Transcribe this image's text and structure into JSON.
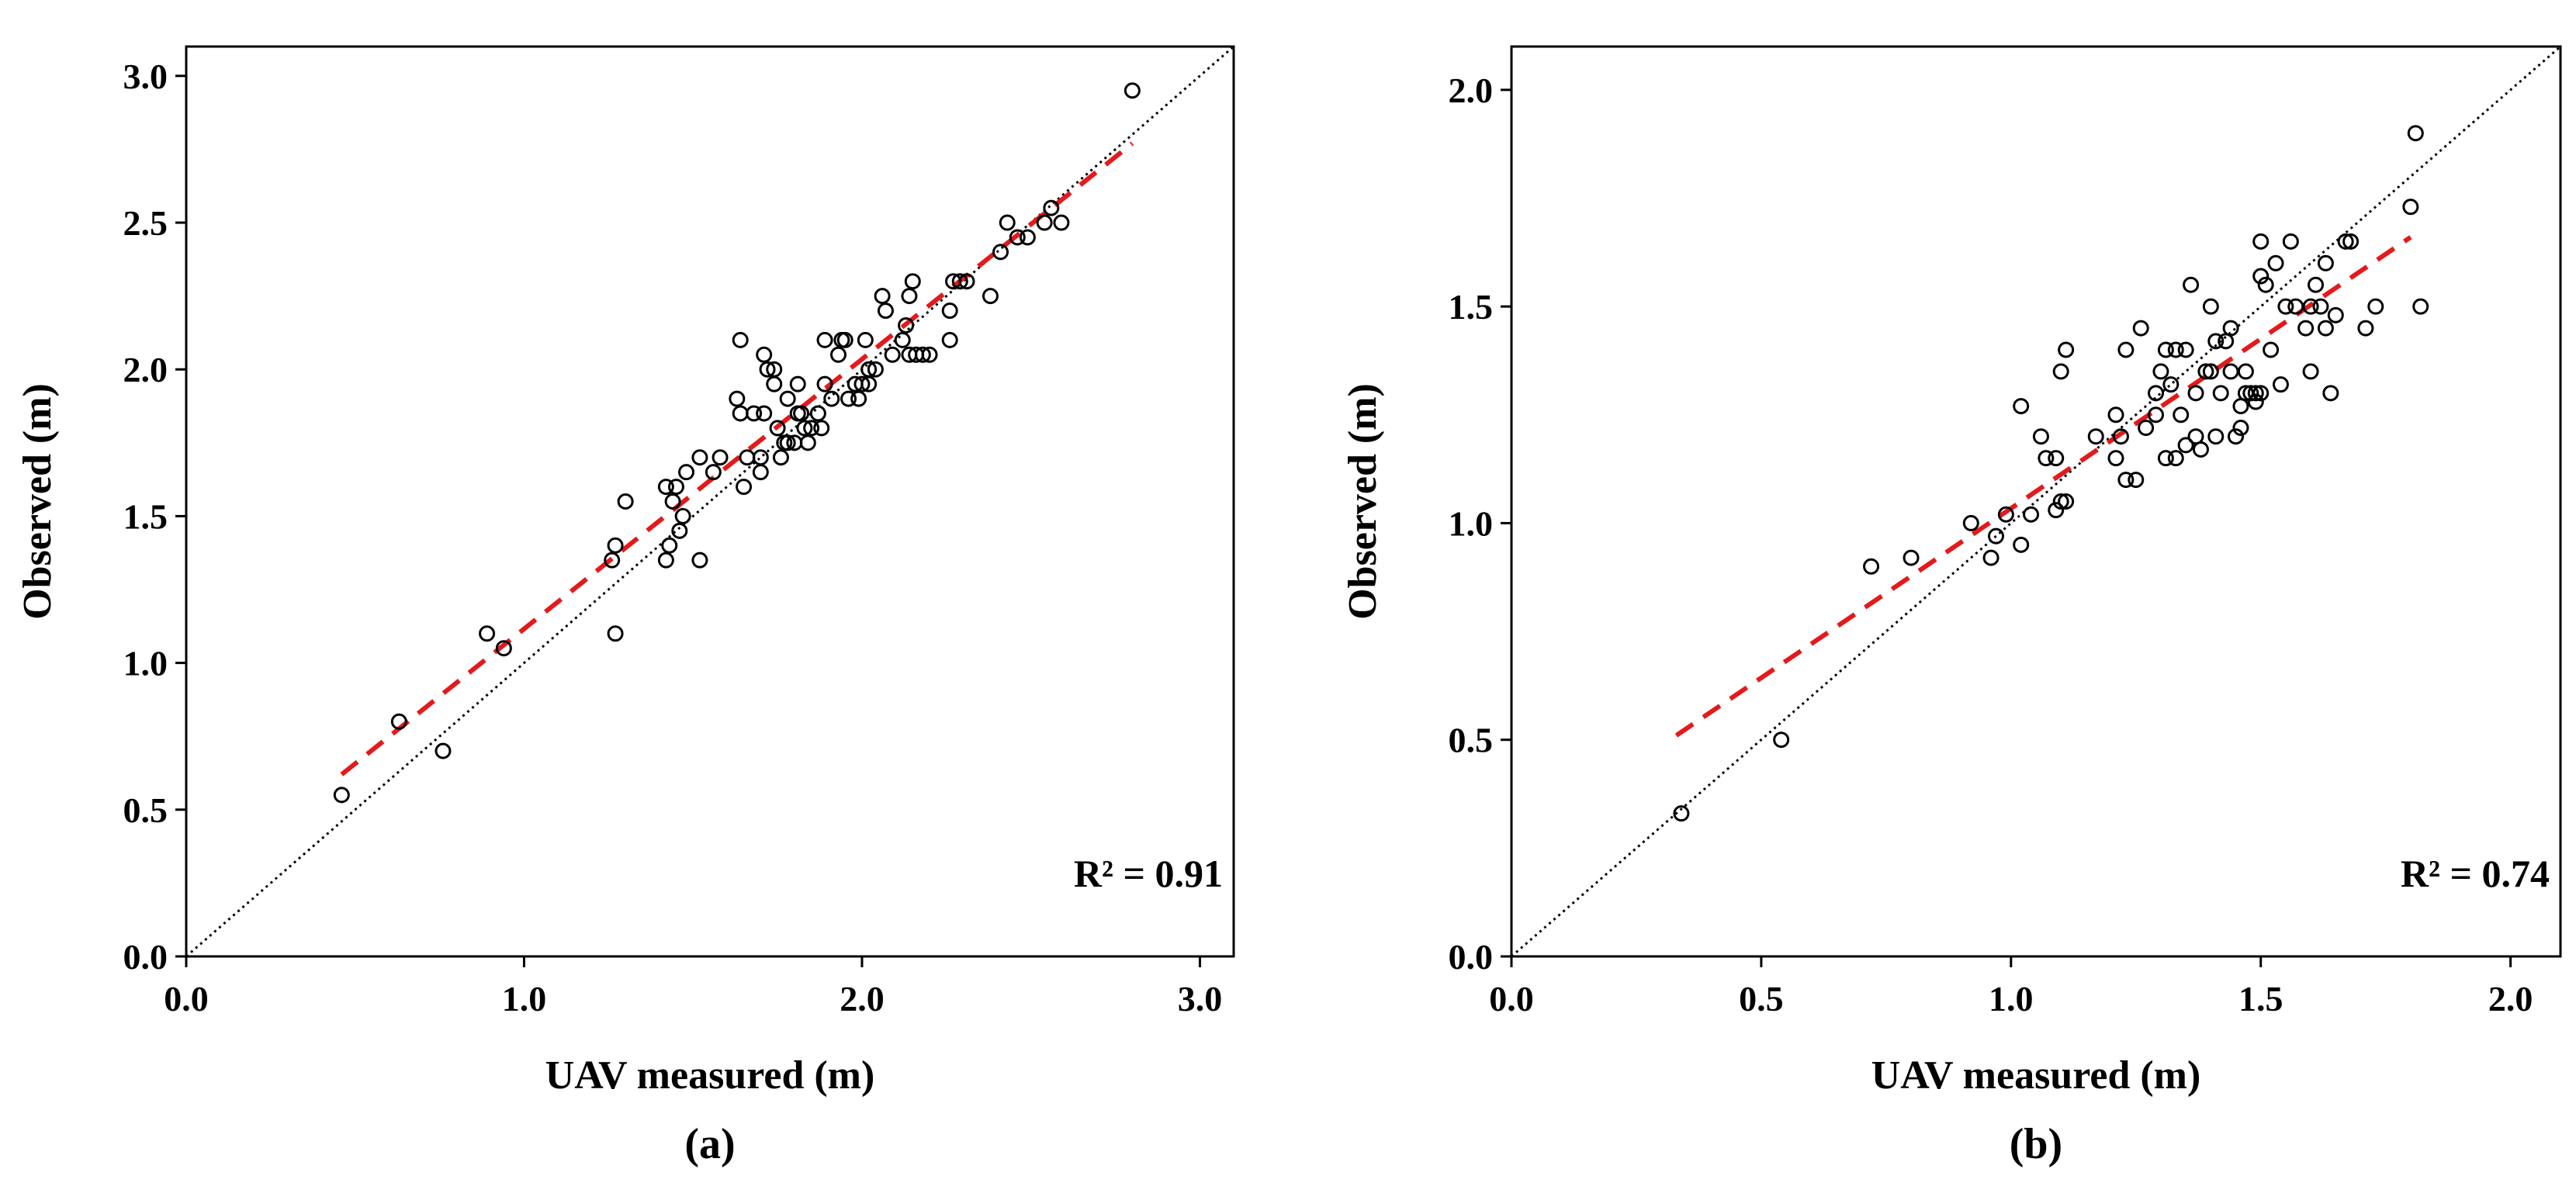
{
  "chart_data": [
    {
      "type": "scatter",
      "panel_label": "(a)",
      "xlabel": "UAV measured (m)",
      "ylabel": "Observed (m)",
      "xlim": [
        0,
        3.1
      ],
      "ylim": [
        0,
        3.1
      ],
      "xticks": [
        0,
        1,
        2,
        3
      ],
      "yticks": [
        0,
        0.5,
        1,
        1.5,
        2,
        2.5,
        3
      ],
      "xtick_labels": [
        "0.0",
        "1.0",
        "2.0",
        "3.0"
      ],
      "ytick_labels": [
        "0.0",
        "0.5",
        "1.0",
        "1.5",
        "2.0",
        "2.5",
        "3.0"
      ],
      "r2_text": "R² = 0.91",
      "identity_line": true,
      "fit_line": {
        "x1": 0.46,
        "y1": 0.62,
        "x2": 2.8,
        "y2": 2.77,
        "color": "#e31a1c"
      },
      "points": [
        [
          0.46,
          0.55
        ],
        [
          0.63,
          0.8
        ],
        [
          0.76,
          0.7
        ],
        [
          0.89,
          1.1
        ],
        [
          0.94,
          1.05
        ],
        [
          1.27,
          1.1
        ],
        [
          1.26,
          1.35
        ],
        [
          1.27,
          1.4
        ],
        [
          1.3,
          1.55
        ],
        [
          1.42,
          1.35
        ],
        [
          1.42,
          1.6
        ],
        [
          1.43,
          1.4
        ],
        [
          1.44,
          1.55
        ],
        [
          1.45,
          1.6
        ],
        [
          1.46,
          1.45
        ],
        [
          1.47,
          1.5
        ],
        [
          1.48,
          1.65
        ],
        [
          1.52,
          1.35
        ],
        [
          1.52,
          1.7
        ],
        [
          1.56,
          1.65
        ],
        [
          1.58,
          1.7
        ],
        [
          1.63,
          1.9
        ],
        [
          1.64,
          2.1
        ],
        [
          1.64,
          1.85
        ],
        [
          1.65,
          1.6
        ],
        [
          1.66,
          1.7
        ],
        [
          1.68,
          1.85
        ],
        [
          1.7,
          1.7
        ],
        [
          1.7,
          1.65
        ],
        [
          1.71,
          2.05
        ],
        [
          1.71,
          1.85
        ],
        [
          1.72,
          2.0
        ],
        [
          1.74,
          2.0
        ],
        [
          1.74,
          1.95
        ],
        [
          1.75,
          1.8
        ],
        [
          1.76,
          1.7
        ],
        [
          1.77,
          1.75
        ],
        [
          1.78,
          1.75
        ],
        [
          1.78,
          1.9
        ],
        [
          1.8,
          1.75
        ],
        [
          1.81,
          1.95
        ],
        [
          1.81,
          1.85
        ],
        [
          1.82,
          1.85
        ],
        [
          1.83,
          1.8
        ],
        [
          1.84,
          1.75
        ],
        [
          1.85,
          1.8
        ],
        [
          1.87,
          1.85
        ],
        [
          1.88,
          1.8
        ],
        [
          1.89,
          1.95
        ],
        [
          1.89,
          2.1
        ],
        [
          1.91,
          1.9
        ],
        [
          1.93,
          2.05
        ],
        [
          1.94,
          2.1
        ],
        [
          1.95,
          2.1
        ],
        [
          1.96,
          1.9
        ],
        [
          1.98,
          1.95
        ],
        [
          1.99,
          1.9
        ],
        [
          2.0,
          1.95
        ],
        [
          2.01,
          2.1
        ],
        [
          2.02,
          2.0
        ],
        [
          2.02,
          1.95
        ],
        [
          2.04,
          2.0
        ],
        [
          2.06,
          2.25
        ],
        [
          2.07,
          2.2
        ],
        [
          2.09,
          2.05
        ],
        [
          2.12,
          2.1
        ],
        [
          2.13,
          2.15
        ],
        [
          2.14,
          2.05
        ],
        [
          2.14,
          2.25
        ],
        [
          2.15,
          2.3
        ],
        [
          2.16,
          2.05
        ],
        [
          2.18,
          2.05
        ],
        [
          2.2,
          2.05
        ],
        [
          2.26,
          2.2
        ],
        [
          2.26,
          2.1
        ],
        [
          2.27,
          2.3
        ],
        [
          2.29,
          2.3
        ],
        [
          2.31,
          2.3
        ],
        [
          2.38,
          2.25
        ],
        [
          2.41,
          2.4
        ],
        [
          2.43,
          2.5
        ],
        [
          2.46,
          2.45
        ],
        [
          2.49,
          2.45
        ],
        [
          2.54,
          2.5
        ],
        [
          2.56,
          2.55
        ],
        [
          2.59,
          2.5
        ],
        [
          2.8,
          2.95
        ]
      ]
    },
    {
      "type": "scatter",
      "panel_label": "(b)",
      "xlabel": "UAV measured (m)",
      "ylabel": "Observed (m)",
      "xlim": [
        0,
        2.1
      ],
      "ylim": [
        0,
        2.1
      ],
      "xticks": [
        0,
        0.5,
        1,
        1.5,
        2
      ],
      "yticks": [
        0,
        0.5,
        1,
        1.5,
        2
      ],
      "xtick_labels": [
        "0.0",
        "0.5",
        "1.0",
        "1.5",
        "2.0"
      ],
      "ytick_labels": [
        "0.0",
        "0.5",
        "1.0",
        "1.5",
        "2.0"
      ],
      "r2_text": "R² = 0.74",
      "identity_line": true,
      "fit_line": {
        "x1": 0.33,
        "y1": 0.51,
        "x2": 1.8,
        "y2": 1.66,
        "color": "#e31a1c"
      },
      "points": [
        [
          0.34,
          0.33
        ],
        [
          0.54,
          0.5
        ],
        [
          0.72,
          0.9
        ],
        [
          0.8,
          0.92
        ],
        [
          0.92,
          1.0
        ],
        [
          0.96,
          0.92
        ],
        [
          0.97,
          0.97
        ],
        [
          0.99,
          1.02
        ],
        [
          1.02,
          0.95
        ],
        [
          1.02,
          1.27
        ],
        [
          1.04,
          1.02
        ],
        [
          1.06,
          1.2
        ],
        [
          1.07,
          1.15
        ],
        [
          1.09,
          1.15
        ],
        [
          1.09,
          1.03
        ],
        [
          1.1,
          1.05
        ],
        [
          1.1,
          1.35
        ],
        [
          1.11,
          1.4
        ],
        [
          1.11,
          1.05
        ],
        [
          1.17,
          1.2
        ],
        [
          1.21,
          1.15
        ],
        [
          1.21,
          1.25
        ],
        [
          1.22,
          1.2
        ],
        [
          1.23,
          1.4
        ],
        [
          1.23,
          1.1
        ],
        [
          1.25,
          1.1
        ],
        [
          1.26,
          1.45
        ],
        [
          1.27,
          1.22
        ],
        [
          1.29,
          1.3
        ],
        [
          1.29,
          1.25
        ],
        [
          1.3,
          1.35
        ],
        [
          1.31,
          1.4
        ],
        [
          1.31,
          1.15
        ],
        [
          1.32,
          1.32
        ],
        [
          1.33,
          1.4
        ],
        [
          1.33,
          1.15
        ],
        [
          1.34,
          1.25
        ],
        [
          1.35,
          1.18
        ],
        [
          1.35,
          1.4
        ],
        [
          1.36,
          1.55
        ],
        [
          1.37,
          1.3
        ],
        [
          1.37,
          1.2
        ],
        [
          1.38,
          1.17
        ],
        [
          1.39,
          1.35
        ],
        [
          1.4,
          1.5
        ],
        [
          1.4,
          1.35
        ],
        [
          1.41,
          1.42
        ],
        [
          1.41,
          1.2
        ],
        [
          1.42,
          1.3
        ],
        [
          1.43,
          1.42
        ],
        [
          1.44,
          1.45
        ],
        [
          1.44,
          1.35
        ],
        [
          1.45,
          1.2
        ],
        [
          1.46,
          1.22
        ],
        [
          1.46,
          1.27
        ],
        [
          1.47,
          1.3
        ],
        [
          1.47,
          1.35
        ],
        [
          1.48,
          1.3
        ],
        [
          1.49,
          1.28
        ],
        [
          1.49,
          1.3
        ],
        [
          1.5,
          1.65
        ],
        [
          1.5,
          1.57
        ],
        [
          1.5,
          1.3
        ],
        [
          1.51,
          1.55
        ],
        [
          1.52,
          1.4
        ],
        [
          1.53,
          1.6
        ],
        [
          1.54,
          1.32
        ],
        [
          1.55,
          1.5
        ],
        [
          1.56,
          1.65
        ],
        [
          1.57,
          1.5
        ],
        [
          1.59,
          1.45
        ],
        [
          1.6,
          1.5
        ],
        [
          1.6,
          1.35
        ],
        [
          1.61,
          1.55
        ],
        [
          1.62,
          1.5
        ],
        [
          1.63,
          1.6
        ],
        [
          1.63,
          1.45
        ],
        [
          1.64,
          1.3
        ],
        [
          1.65,
          1.48
        ],
        [
          1.67,
          1.65
        ],
        [
          1.68,
          1.65
        ],
        [
          1.71,
          1.45
        ],
        [
          1.73,
          1.5
        ],
        [
          1.8,
          1.73
        ],
        [
          1.81,
          1.9
        ],
        [
          1.82,
          1.5
        ]
      ]
    }
  ]
}
